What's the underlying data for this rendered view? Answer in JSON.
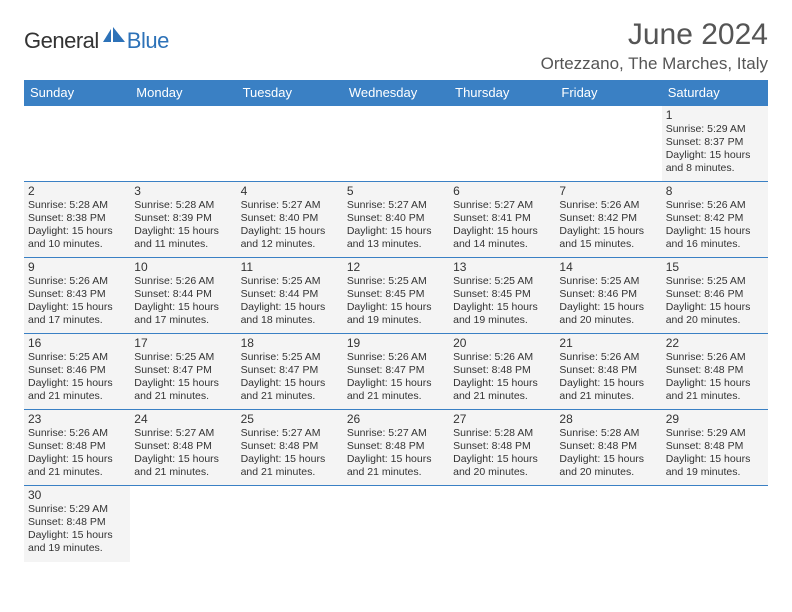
{
  "logo": {
    "text1": "General",
    "text2": "Blue"
  },
  "title": "June 2024",
  "location": "Ortezzano, The Marches, Italy",
  "colors": {
    "header_bg": "#3a80c4",
    "header_fg": "#ffffff",
    "cell_bg": "#f4f4f4",
    "border": "#3a80c4",
    "text": "#333333",
    "title": "#555555",
    "logo_blue": "#2d72b8"
  },
  "weekdays": [
    "Sunday",
    "Monday",
    "Tuesday",
    "Wednesday",
    "Thursday",
    "Friday",
    "Saturday"
  ],
  "weeks": [
    [
      null,
      null,
      null,
      null,
      null,
      null,
      {
        "n": "1",
        "sr": "5:29 AM",
        "ss": "8:37 PM",
        "dl": "15 hours and 8 minutes."
      }
    ],
    [
      {
        "n": "2",
        "sr": "5:28 AM",
        "ss": "8:38 PM",
        "dl": "15 hours and 10 minutes."
      },
      {
        "n": "3",
        "sr": "5:28 AM",
        "ss": "8:39 PM",
        "dl": "15 hours and 11 minutes."
      },
      {
        "n": "4",
        "sr": "5:27 AM",
        "ss": "8:40 PM",
        "dl": "15 hours and 12 minutes."
      },
      {
        "n": "5",
        "sr": "5:27 AM",
        "ss": "8:40 PM",
        "dl": "15 hours and 13 minutes."
      },
      {
        "n": "6",
        "sr": "5:27 AM",
        "ss": "8:41 PM",
        "dl": "15 hours and 14 minutes."
      },
      {
        "n": "7",
        "sr": "5:26 AM",
        "ss": "8:42 PM",
        "dl": "15 hours and 15 minutes."
      },
      {
        "n": "8",
        "sr": "5:26 AM",
        "ss": "8:42 PM",
        "dl": "15 hours and 16 minutes."
      }
    ],
    [
      {
        "n": "9",
        "sr": "5:26 AM",
        "ss": "8:43 PM",
        "dl": "15 hours and 17 minutes."
      },
      {
        "n": "10",
        "sr": "5:26 AM",
        "ss": "8:44 PM",
        "dl": "15 hours and 17 minutes."
      },
      {
        "n": "11",
        "sr": "5:25 AM",
        "ss": "8:44 PM",
        "dl": "15 hours and 18 minutes."
      },
      {
        "n": "12",
        "sr": "5:25 AM",
        "ss": "8:45 PM",
        "dl": "15 hours and 19 minutes."
      },
      {
        "n": "13",
        "sr": "5:25 AM",
        "ss": "8:45 PM",
        "dl": "15 hours and 19 minutes."
      },
      {
        "n": "14",
        "sr": "5:25 AM",
        "ss": "8:46 PM",
        "dl": "15 hours and 20 minutes."
      },
      {
        "n": "15",
        "sr": "5:25 AM",
        "ss": "8:46 PM",
        "dl": "15 hours and 20 minutes."
      }
    ],
    [
      {
        "n": "16",
        "sr": "5:25 AM",
        "ss": "8:46 PM",
        "dl": "15 hours and 21 minutes."
      },
      {
        "n": "17",
        "sr": "5:25 AM",
        "ss": "8:47 PM",
        "dl": "15 hours and 21 minutes."
      },
      {
        "n": "18",
        "sr": "5:25 AM",
        "ss": "8:47 PM",
        "dl": "15 hours and 21 minutes."
      },
      {
        "n": "19",
        "sr": "5:26 AM",
        "ss": "8:47 PM",
        "dl": "15 hours and 21 minutes."
      },
      {
        "n": "20",
        "sr": "5:26 AM",
        "ss": "8:48 PM",
        "dl": "15 hours and 21 minutes."
      },
      {
        "n": "21",
        "sr": "5:26 AM",
        "ss": "8:48 PM",
        "dl": "15 hours and 21 minutes."
      },
      {
        "n": "22",
        "sr": "5:26 AM",
        "ss": "8:48 PM",
        "dl": "15 hours and 21 minutes."
      }
    ],
    [
      {
        "n": "23",
        "sr": "5:26 AM",
        "ss": "8:48 PM",
        "dl": "15 hours and 21 minutes."
      },
      {
        "n": "24",
        "sr": "5:27 AM",
        "ss": "8:48 PM",
        "dl": "15 hours and 21 minutes."
      },
      {
        "n": "25",
        "sr": "5:27 AM",
        "ss": "8:48 PM",
        "dl": "15 hours and 21 minutes."
      },
      {
        "n": "26",
        "sr": "5:27 AM",
        "ss": "8:48 PM",
        "dl": "15 hours and 21 minutes."
      },
      {
        "n": "27",
        "sr": "5:28 AM",
        "ss": "8:48 PM",
        "dl": "15 hours and 20 minutes."
      },
      {
        "n": "28",
        "sr": "5:28 AM",
        "ss": "8:48 PM",
        "dl": "15 hours and 20 minutes."
      },
      {
        "n": "29",
        "sr": "5:29 AM",
        "ss": "8:48 PM",
        "dl": "15 hours and 19 minutes."
      }
    ],
    [
      {
        "n": "30",
        "sr": "5:29 AM",
        "ss": "8:48 PM",
        "dl": "15 hours and 19 minutes."
      },
      null,
      null,
      null,
      null,
      null,
      null
    ]
  ],
  "labels": {
    "sunrise": "Sunrise: ",
    "sunset": "Sunset: ",
    "daylight": "Daylight: "
  }
}
